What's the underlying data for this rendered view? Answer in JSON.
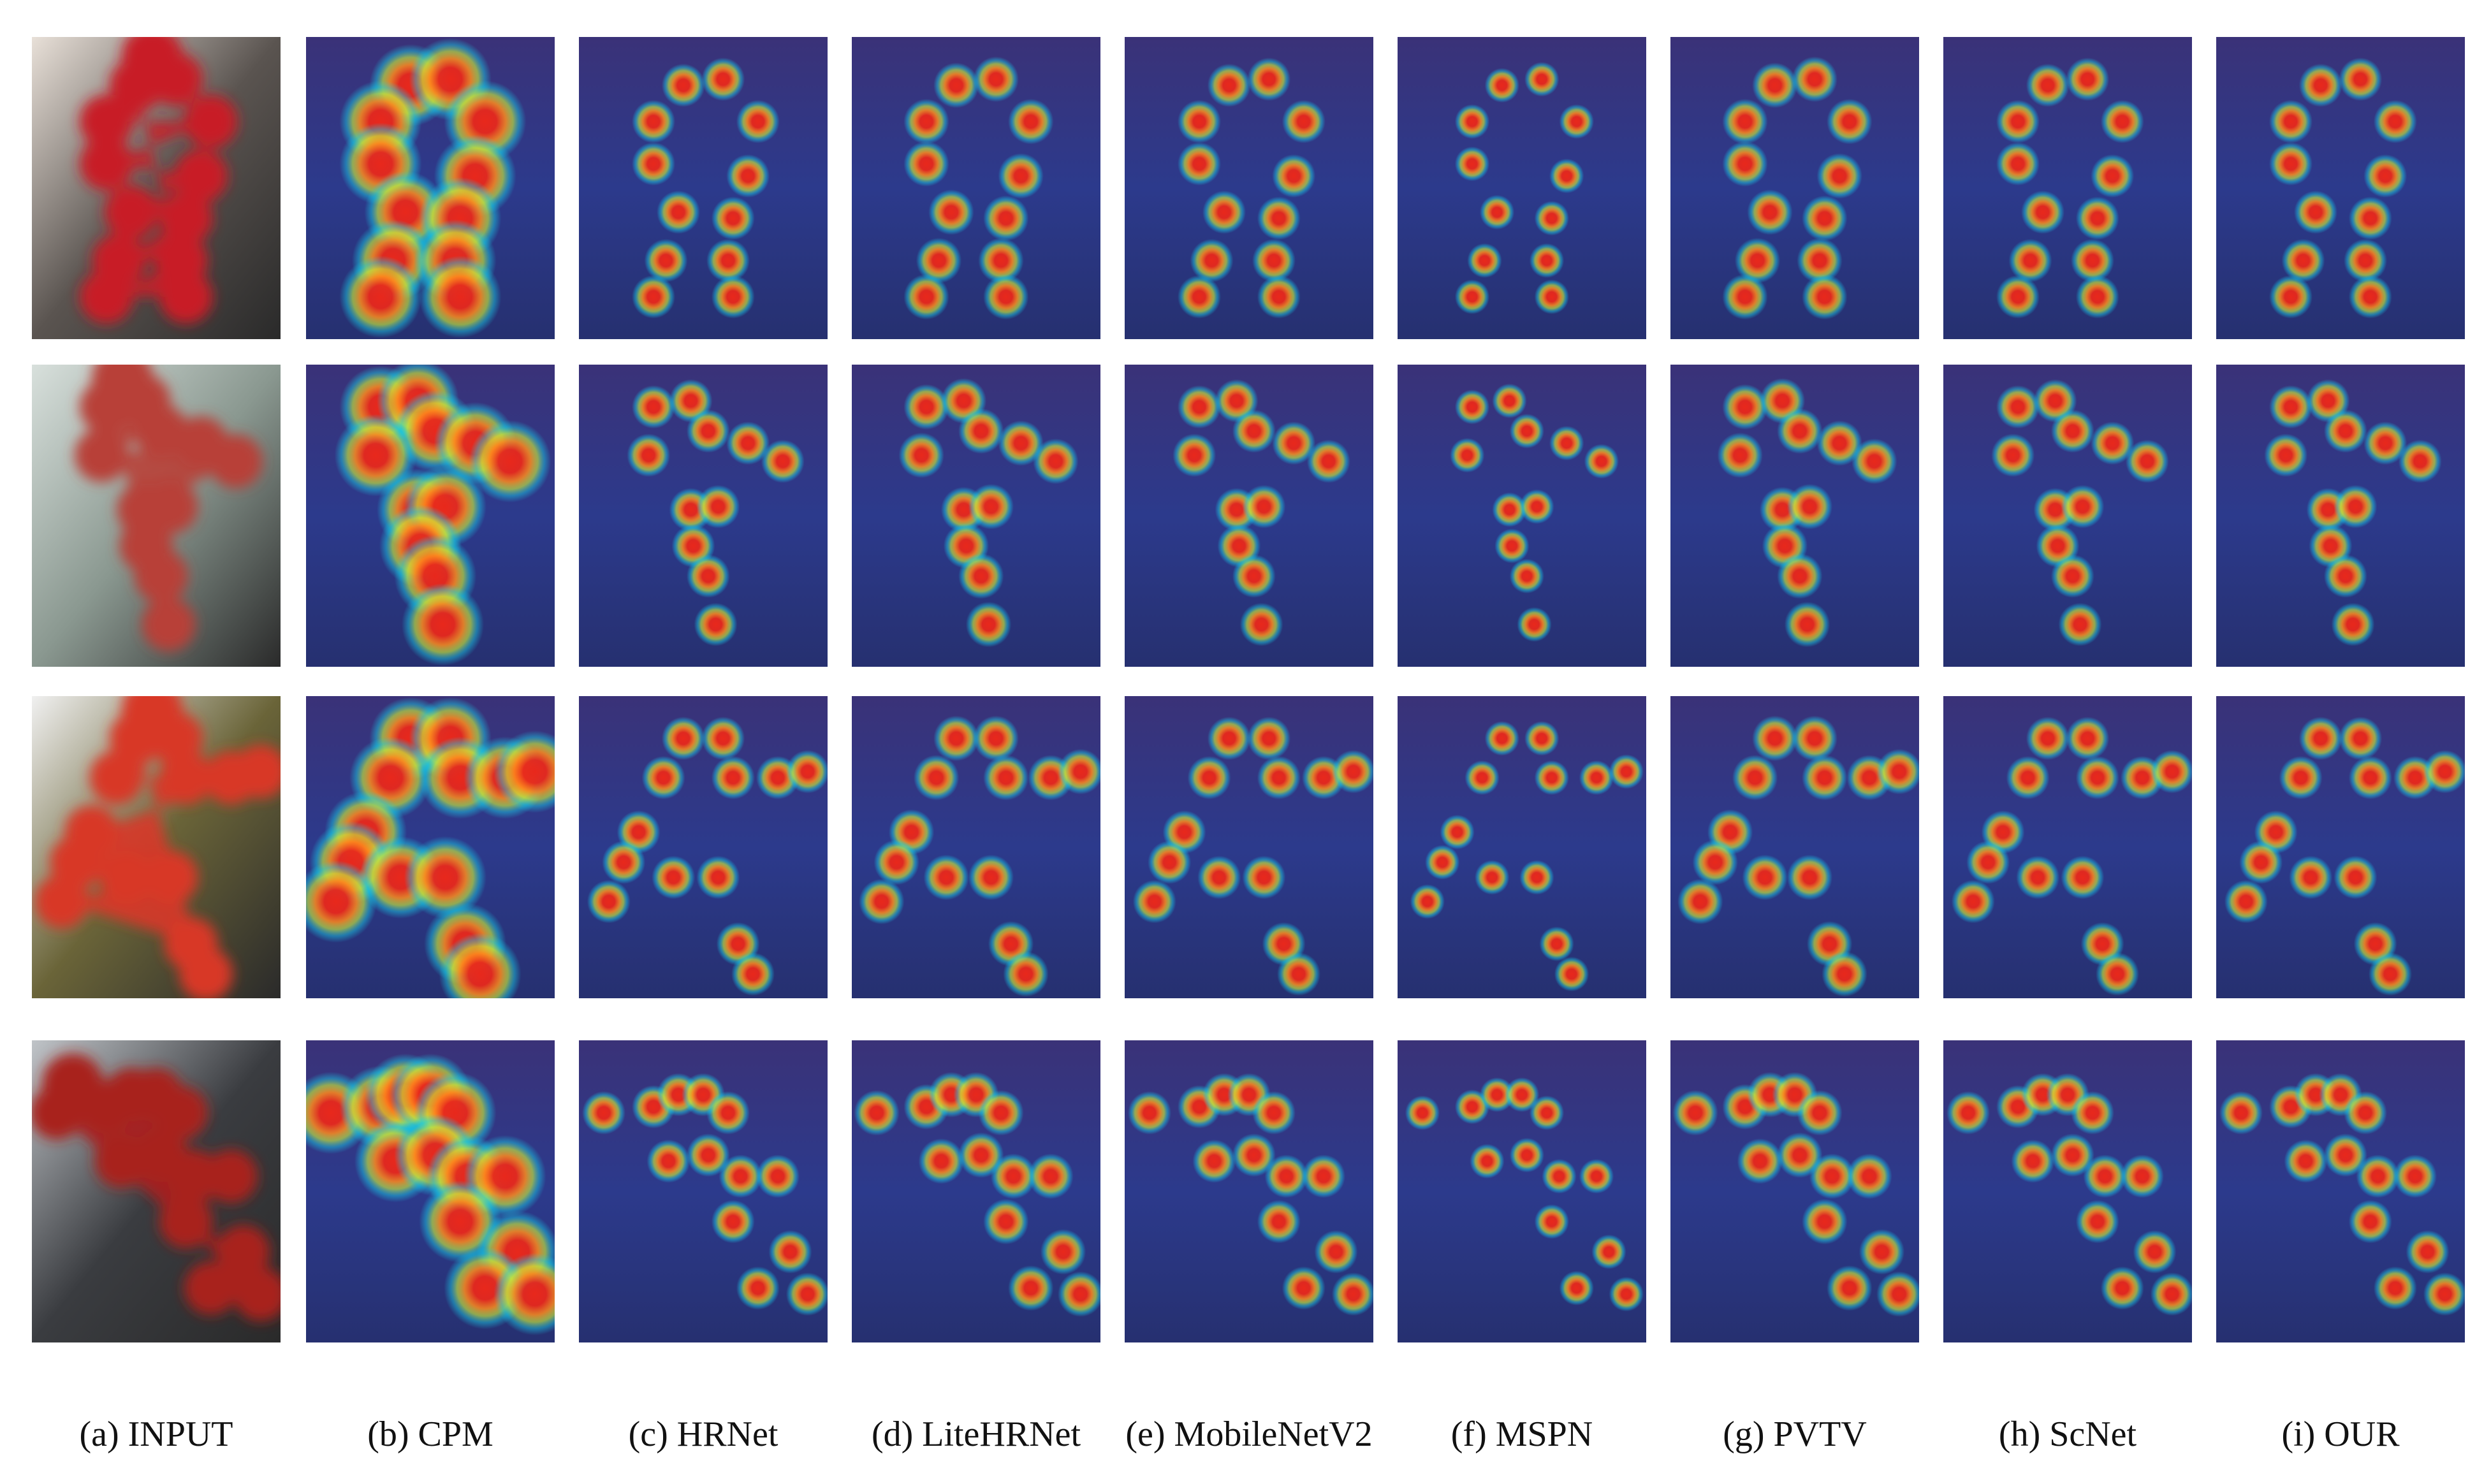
{
  "columns": [
    {
      "id": "input",
      "caption": "(a) INPUT",
      "kind": "photo"
    },
    {
      "id": "cpm",
      "caption": "(b) CPM",
      "kind": "heatmap",
      "blob_scale": 1.9
    },
    {
      "id": "hrnet",
      "caption": "(c) HRNet",
      "kind": "heatmap",
      "blob_scale": 1.0
    },
    {
      "id": "litehrnet",
      "caption": "(d) LiteHRNet",
      "kind": "heatmap",
      "blob_scale": 1.05
    },
    {
      "id": "mobilenetv2",
      "caption": "(e) MobileNetV2",
      "kind": "heatmap",
      "blob_scale": 1.0
    },
    {
      "id": "mspn",
      "caption": "(f) MSPN",
      "kind": "heatmap",
      "blob_scale": 0.8
    },
    {
      "id": "pvtv",
      "caption": "(g) PVTV",
      "kind": "heatmap",
      "blob_scale": 1.05
    },
    {
      "id": "scnet",
      "caption": "(h) ScNet",
      "kind": "heatmap",
      "blob_scale": 1.0
    },
    {
      "id": "our",
      "caption": "(i) OUR",
      "kind": "heatmap",
      "blob_scale": 1.0
    }
  ],
  "rows": [
    {
      "id": "sample-1",
      "photo_colors": {
        "bg": "#5a5450",
        "subject": "#c81e28",
        "accent": "#e8e0d8"
      },
      "keypoints": [
        [
          0.42,
          0.16
        ],
        [
          0.58,
          0.14
        ],
        [
          0.3,
          0.28
        ],
        [
          0.72,
          0.28
        ],
        [
          0.3,
          0.42
        ],
        [
          0.68,
          0.46
        ],
        [
          0.4,
          0.58
        ],
        [
          0.62,
          0.6
        ],
        [
          0.35,
          0.74
        ],
        [
          0.6,
          0.74
        ],
        [
          0.3,
          0.86
        ],
        [
          0.62,
          0.86
        ]
      ]
    },
    {
      "id": "sample-2",
      "photo_colors": {
        "bg": "#8a9890",
        "subject": "#b84038",
        "accent": "#d8e0dc"
      },
      "keypoints": [
        [
          0.3,
          0.14
        ],
        [
          0.45,
          0.12
        ],
        [
          0.52,
          0.22
        ],
        [
          0.28,
          0.3
        ],
        [
          0.68,
          0.26
        ],
        [
          0.82,
          0.32
        ],
        [
          0.45,
          0.48
        ],
        [
          0.56,
          0.47
        ],
        [
          0.46,
          0.6
        ],
        [
          0.52,
          0.7
        ],
        [
          0.55,
          0.86
        ]
      ]
    },
    {
      "id": "sample-3",
      "photo_colors": {
        "bg": "#6a6438",
        "subject": "#d83828",
        "accent": "#f0f0f0"
      },
      "keypoints": [
        [
          0.42,
          0.14
        ],
        [
          0.58,
          0.14
        ],
        [
          0.34,
          0.27
        ],
        [
          0.62,
          0.27
        ],
        [
          0.8,
          0.27
        ],
        [
          0.92,
          0.25
        ],
        [
          0.24,
          0.45
        ],
        [
          0.18,
          0.55
        ],
        [
          0.38,
          0.6
        ],
        [
          0.56,
          0.6
        ],
        [
          0.12,
          0.68
        ],
        [
          0.64,
          0.82
        ],
        [
          0.7,
          0.92
        ]
      ]
    },
    {
      "id": "sample-4",
      "photo_colors": {
        "bg": "#3a3c40",
        "subject": "#a8201c",
        "accent": "#c0c4c8"
      },
      "keypoints": [
        [
          0.1,
          0.24
        ],
        [
          0.3,
          0.22
        ],
        [
          0.4,
          0.18
        ],
        [
          0.5,
          0.18
        ],
        [
          0.6,
          0.24
        ],
        [
          0.36,
          0.4
        ],
        [
          0.52,
          0.38
        ],
        [
          0.65,
          0.45
        ],
        [
          0.8,
          0.45
        ],
        [
          0.62,
          0.6
        ],
        [
          0.85,
          0.7
        ],
        [
          0.72,
          0.82
        ],
        [
          0.92,
          0.84
        ]
      ]
    }
  ],
  "heatmap_colors": {
    "base": "#2c3a8c",
    "cool": "#18d0e8",
    "mid": "#c8e83c",
    "warm": "#ff8a1c",
    "hot": "#e8281c"
  }
}
